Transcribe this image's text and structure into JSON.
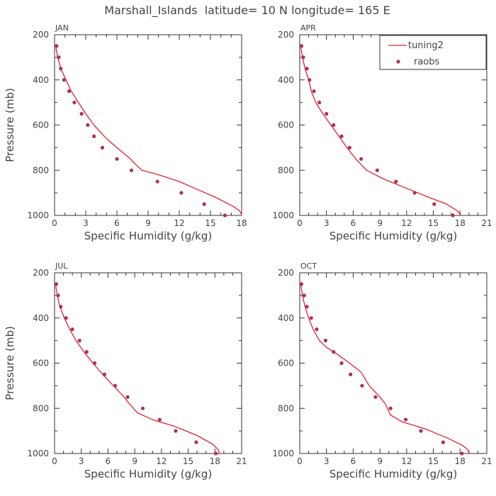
{
  "figure": {
    "title": "Marshall_Islands  latitude= 10 N longitude= 165 E",
    "legend_placement": "top-right of APR panel",
    "line_color": "#e0242c",
    "point_color": "#b0305a"
  },
  "chart_data": [
    {
      "type": "line",
      "panel_label": "JAN",
      "xlabel": "Specific Humidity (g/kg)",
      "ylabel": "Pressure (mb)",
      "xlim": [
        0,
        18
      ],
      "ylim": [
        1000,
        200
      ],
      "y_inverted": true,
      "xticks": [
        0,
        3,
        6,
        9,
        12,
        15,
        18
      ],
      "yticks": [
        200,
        400,
        600,
        800,
        1000
      ],
      "series": [
        {
          "name": "tuning2",
          "style": "line",
          "x": [
            0.1,
            0.3,
            0.6,
            1.1,
            1.6,
            2.3,
            3.0,
            3.8,
            4.6,
            5.0,
            6.0,
            7.3,
            7.7,
            8.4,
            10.0,
            12.0,
            13.5,
            15.5,
            17.2,
            17.8,
            18.0,
            18.0
          ],
          "y": [
            250,
            300,
            350,
            400,
            450,
            500,
            550,
            600,
            640,
            660,
            700,
            750,
            770,
            800,
            820,
            850,
            880,
            920,
            960,
            980,
            995,
            1000
          ]
        },
        {
          "name": "raobs",
          "style": "scatter",
          "x": [
            0.2,
            0.4,
            0.6,
            0.9,
            1.4,
            1.9,
            2.6,
            3.2,
            3.8,
            4.6,
            6.0,
            7.4,
            9.9,
            12.2,
            14.4,
            16.4
          ],
          "y": [
            250,
            300,
            350,
            400,
            450,
            500,
            550,
            600,
            650,
            700,
            750,
            800,
            850,
            900,
            950,
            1000
          ]
        }
      ]
    },
    {
      "type": "line",
      "panel_label": "APR",
      "xlabel": "Specific Humidity (g/kg)",
      "ylabel": "",
      "xlim": [
        0,
        21
      ],
      "ylim": [
        1000,
        200
      ],
      "y_inverted": true,
      "xticks": [
        0,
        3,
        6,
        9,
        12,
        15,
        18,
        21
      ],
      "yticks": [
        200,
        400,
        600,
        800,
        1000
      ],
      "legend": [
        "tuning2",
        "raobs"
      ],
      "series": [
        {
          "name": "tuning2",
          "style": "line",
          "x": [
            0.1,
            0.3,
            0.6,
            1.0,
            1.3,
            1.8,
            2.6,
            3.5,
            4.4,
            5.3,
            6.3,
            7.5,
            9.5,
            12.0,
            14.5,
            16.5,
            17.7,
            18.0,
            18.0
          ],
          "y": [
            250,
            300,
            350,
            400,
            450,
            500,
            550,
            600,
            650,
            700,
            750,
            800,
            840,
            880,
            920,
            950,
            980,
            995,
            1000
          ]
        },
        {
          "name": "raobs",
          "style": "scatter",
          "x": [
            0.2,
            0.4,
            0.8,
            1.1,
            1.6,
            2.2,
            3.0,
            3.8,
            4.7,
            5.6,
            6.9,
            8.7,
            10.8,
            12.9,
            15.1,
            17.2
          ],
          "y": [
            250,
            300,
            350,
            400,
            450,
            500,
            550,
            600,
            650,
            700,
            750,
            800,
            850,
            900,
            950,
            1000
          ]
        }
      ]
    },
    {
      "type": "line",
      "panel_label": "JUL",
      "xlabel": "Specific Humidity (g/kg)",
      "ylabel": "Pressure (mb)",
      "xlim": [
        0,
        21
      ],
      "ylim": [
        1000,
        200
      ],
      "y_inverted": true,
      "xticks": [
        0,
        3,
        6,
        9,
        12,
        15,
        18,
        21
      ],
      "yticks": [
        200,
        400,
        600,
        800,
        1000
      ],
      "series": [
        {
          "name": "tuning2",
          "style": "line",
          "x": [
            0.1,
            0.3,
            0.6,
            1.1,
            1.7,
            2.4,
            3.3,
            4.3,
            5.4,
            6.6,
            7.8,
            8.4,
            9.3,
            11.0,
            13.5,
            16.0,
            17.8,
            18.4,
            18.5
          ],
          "y": [
            250,
            300,
            350,
            400,
            450,
            500,
            550,
            600,
            650,
            700,
            750,
            780,
            820,
            850,
            880,
            920,
            960,
            985,
            1000
          ]
        },
        {
          "name": "raobs",
          "style": "scatter",
          "x": [
            0.2,
            0.4,
            0.7,
            1.3,
            2.0,
            2.8,
            3.6,
            4.5,
            5.6,
            6.8,
            8.2,
            9.9,
            11.8,
            13.6,
            15.9,
            18.1
          ],
          "y": [
            250,
            300,
            350,
            400,
            450,
            500,
            550,
            600,
            650,
            700,
            750,
            800,
            850,
            900,
            950,
            1000
          ]
        }
      ]
    },
    {
      "type": "line",
      "panel_label": "OCT",
      "xlabel": "Specific Humidity (g/kg)",
      "ylabel": "",
      "xlim": [
        0,
        21
      ],
      "ylim": [
        1000,
        200
      ],
      "y_inverted": true,
      "xticks": [
        0,
        3,
        6,
        9,
        12,
        15,
        18,
        21
      ],
      "yticks": [
        200,
        400,
        600,
        800,
        1000
      ],
      "series": [
        {
          "name": "tuning2",
          "style": "line",
          "x": [
            0.1,
            0.3,
            0.6,
            1.0,
            1.5,
            2.2,
            3.0,
            4.2,
            5.6,
            6.9,
            7.8,
            9.0,
            9.6,
            10.2,
            11.5,
            14.0,
            16.5,
            18.3,
            18.9,
            19.0
          ],
          "y": [
            250,
            300,
            350,
            400,
            450,
            500,
            530,
            560,
            600,
            640,
            700,
            750,
            780,
            830,
            860,
            890,
            930,
            965,
            985,
            1000
          ]
        },
        {
          "name": "raobs",
          "style": "scatter",
          "x": [
            0.2,
            0.5,
            0.8,
            1.3,
            1.9,
            2.9,
            3.8,
            4.7,
            5.7,
            7.0,
            8.5,
            10.2,
            11.9,
            13.6,
            16.1,
            18.2
          ],
          "y": [
            250,
            300,
            350,
            400,
            450,
            500,
            550,
            600,
            650,
            700,
            750,
            800,
            850,
            900,
            950,
            1000
          ]
        }
      ]
    }
  ]
}
